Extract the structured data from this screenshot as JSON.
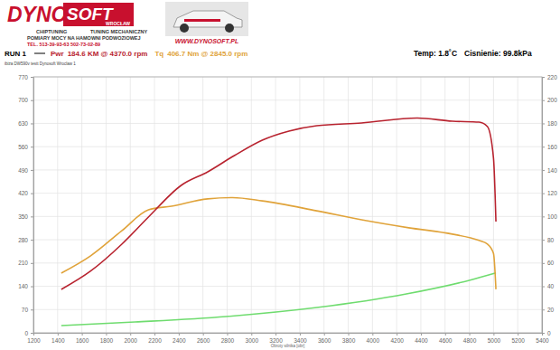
{
  "chart_data": {
    "type": "line",
    "title": "RUN 1",
    "subtitle": "ibiza DW590v testt Dynosoft Wroclaw 1",
    "x_label": "Obroty silnika [obr]",
    "annotations": [
      "DYNO",
      "SOFT",
      "WROCŁAW",
      "CHIPTUNING",
      "TUNING MECHANICZNY",
      "POMIARY MOCY NA HAMOWNI PODWOZIOWEJ",
      "TEL. 513-39-93-63   502-73-02-89",
      "WWW.DYNOSOFT.PL",
      "184.6 KM @ 4370.0 rpm",
      "406.7 Nm @ 2845.0 rpm",
      "Temp: 1.8˚C",
      "Cisnienie: 99.8kPa"
    ],
    "xlim": [
      1200,
      5400
    ],
    "xticks": [
      1200,
      1400,
      1600,
      1800,
      2000,
      2200,
      2400,
      2600,
      2800,
      3000,
      3200,
      3400,
      3600,
      3800,
      4000,
      4200,
      4400,
      4600,
      4800,
      5000,
      5200,
      5400
    ],
    "ylim": [
      0,
      770
    ],
    "yticks": [
      0,
      70,
      140,
      210,
      280,
      350,
      420,
      490,
      560,
      630,
      700,
      770
    ],
    "y2lim": [
      0,
      220
    ],
    "y2ticks": [
      0,
      20,
      40,
      60,
      80,
      100,
      120,
      140,
      160,
      180,
      200,
      220
    ],
    "grid": true,
    "series": [
      {
        "name": "Pwr",
        "color": "#b8232f",
        "axis": "y2",
        "x": [
          1430,
          1670,
          1930,
          2150,
          2420,
          2640,
          2860,
          3090,
          3310,
          3540,
          3910,
          4370,
          4660,
          4880,
          4950,
          5000,
          5020
        ],
        "values": [
          37.3,
          52.9,
          76.2,
          99.5,
          126.7,
          138.4,
          152.4,
          165.6,
          173.4,
          178.0,
          180.4,
          184.6,
          181.9,
          181.1,
          177.2,
          150.0,
          95.6
        ]
      },
      {
        "name": "Tq",
        "color": "#e0a33a",
        "x": [
          1430,
          1670,
          1930,
          2150,
          2340,
          2640,
          2845,
          3090,
          3540,
          3910,
          4300,
          4660,
          4880,
          4950,
          5000,
          5020
        ],
        "values": [
          179.6,
          231,
          307,
          370,
          381,
          403,
          406.7,
          397,
          367,
          340,
          316,
          297,
          278,
          267,
          239,
          131
        ]
      },
      {
        "color": "#6fdc6f",
        "x": [
          1430,
          2040,
          2790,
          3540,
          4280,
          4800,
          5020
        ],
        "values": [
          21.8,
          32.6,
          49,
          76,
          117,
          158,
          180
        ]
      }
    ]
  }
}
